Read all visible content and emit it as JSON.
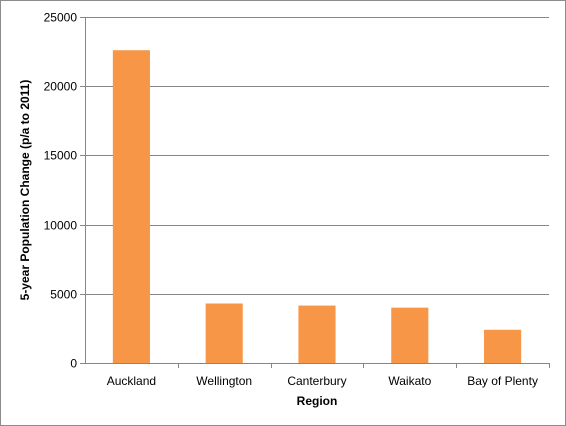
{
  "chart_data": {
    "type": "bar",
    "categories": [
      "Auckland",
      "Wellington",
      "Canterbury",
      "Waikato",
      "Bay of Plenty"
    ],
    "values": [
      22600,
      4300,
      4150,
      4000,
      2400
    ],
    "title": "",
    "xlabel": "Region",
    "ylabel": "5-year Population Change (p/a to 2011)",
    "ylim": [
      0,
      25000
    ],
    "yticks": [
      0,
      5000,
      10000,
      15000,
      20000,
      25000
    ],
    "grid": true,
    "legend": "none",
    "bar_color": "#F79646",
    "grid_color": "#868686"
  }
}
